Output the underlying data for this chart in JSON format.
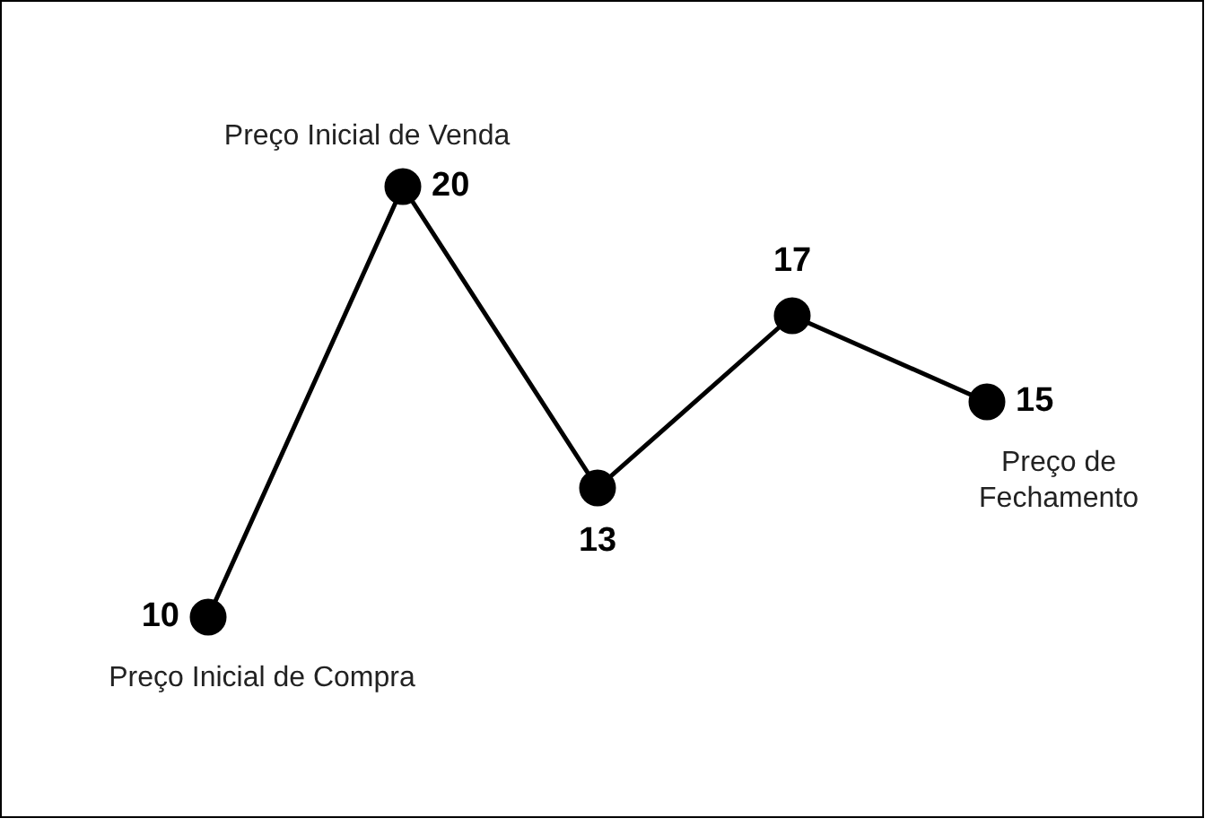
{
  "chart_data": {
    "type": "line",
    "categories": [
      null,
      null,
      null,
      null,
      null
    ],
    "series": [
      {
        "color": "#000000",
        "values": [
          10,
          20,
          13,
          17,
          15
        ]
      }
    ],
    "marker": "circle",
    "line_style": "solid",
    "data_labels": true,
    "legend": false,
    "tick_labels": false,
    "annotations": [
      "Preço Inicial de Compra",
      "Preço Inicial de Venda",
      "Preço de Fechamento"
    ]
  }
}
